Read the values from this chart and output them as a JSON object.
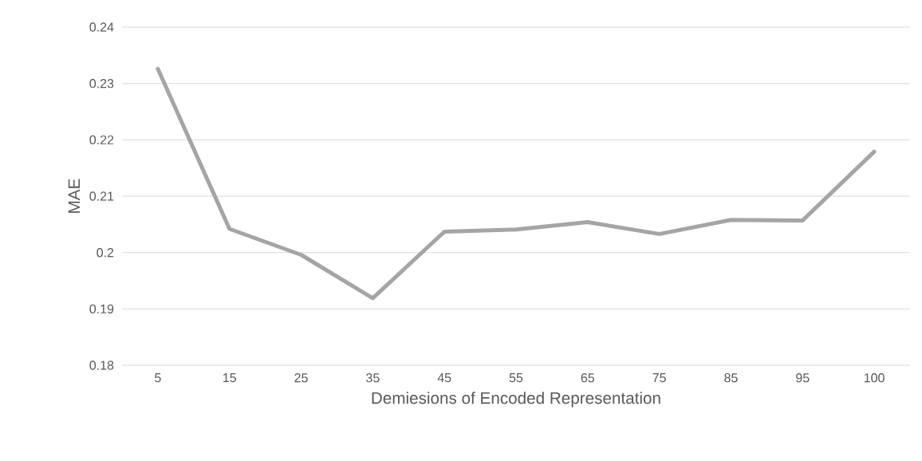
{
  "chart_data": {
    "type": "line",
    "xlabel": "Demiesions of Encoded Representation",
    "ylabel": "MAE",
    "categories": [
      "5",
      "15",
      "25",
      "35",
      "45",
      "55",
      "65",
      "75",
      "85",
      "95",
      "100"
    ],
    "series": [
      {
        "color": "#a5a5a5",
        "values": [
          0.2326,
          0.2042,
          0.1996,
          0.1919,
          0.2037,
          0.2041,
          0.2054,
          0.2033,
          0.2058,
          0.2057,
          0.2179
        ]
      }
    ],
    "ylim": [
      0.18,
      0.24
    ],
    "yticks": [
      0.18,
      0.19,
      0.2,
      0.21,
      0.22,
      0.23,
      0.24
    ],
    "grid": "y",
    "legend": false,
    "marker": "none",
    "line_style": "solid"
  }
}
